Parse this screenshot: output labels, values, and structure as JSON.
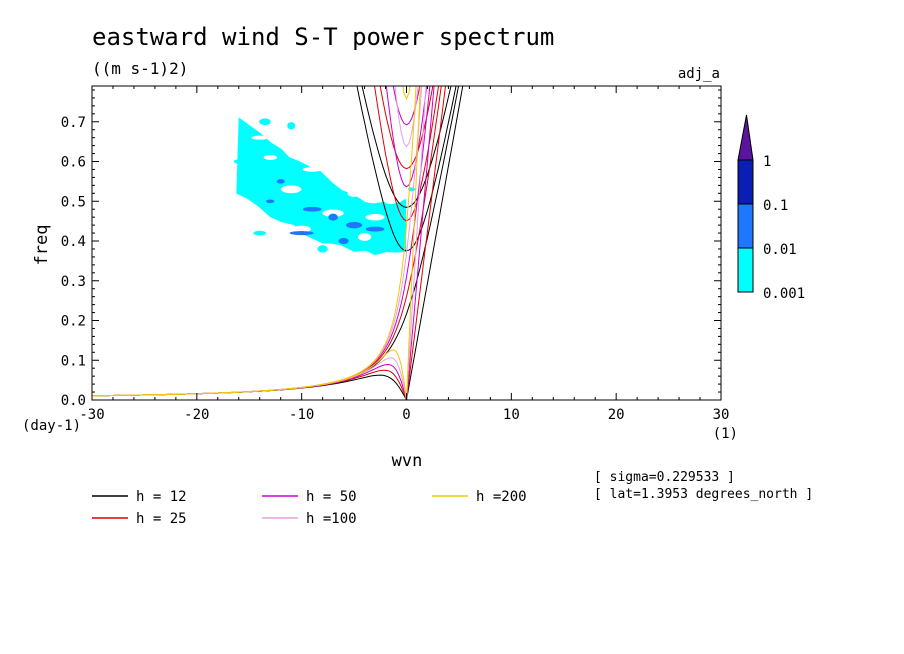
{
  "chart_data": {
    "type": "line",
    "title": "eastward wind S-T power spectrum",
    "subtitle": "((m s-1)2)",
    "tag": "adj_a",
    "xlabel": "wvn",
    "xunit": "(1)",
    "ylabel": "freq",
    "yunit": "(day-1)",
    "xlim": [
      -30,
      30
    ],
    "ylim": [
      0,
      0.79
    ],
    "xticks": [
      -30,
      -20,
      -10,
      0,
      10,
      20,
      30
    ],
    "yticks": [
      0.0,
      0.1,
      0.2,
      0.3,
      0.4,
      0.5,
      0.6,
      0.7
    ],
    "ytick_labels": [
      "0.0",
      "0.1",
      "0.2",
      "0.3",
      "0.4",
      "0.5",
      "0.6",
      "0.7"
    ],
    "annotations": [
      "[ sigma=0.229533 ]",
      "[ lat=1.3953 degrees_north ]"
    ],
    "series": [
      {
        "name": "h = 12",
        "color": "#000000"
      },
      {
        "name": "h = 25",
        "color": "#e00000"
      },
      {
        "name": "h = 50",
        "color": "#c800c8"
      },
      {
        "name": "h =100",
        "color": "#e6a0e6"
      },
      {
        "name": "h =200",
        "color": "#f0c800"
      }
    ],
    "colorbar": {
      "levels": [
        "0.001",
        "0.01",
        "0.1",
        "1"
      ],
      "colors": [
        "#00ffff",
        "#1e78ff",
        "#0a1eb4",
        "#5a14a0"
      ]
    },
    "shaded_region": {
      "description_units": "power 0.001-0.01 cyan patch",
      "x_range": [
        -16,
        0
      ],
      "y_range": [
        0.37,
        0.71
      ]
    }
  }
}
